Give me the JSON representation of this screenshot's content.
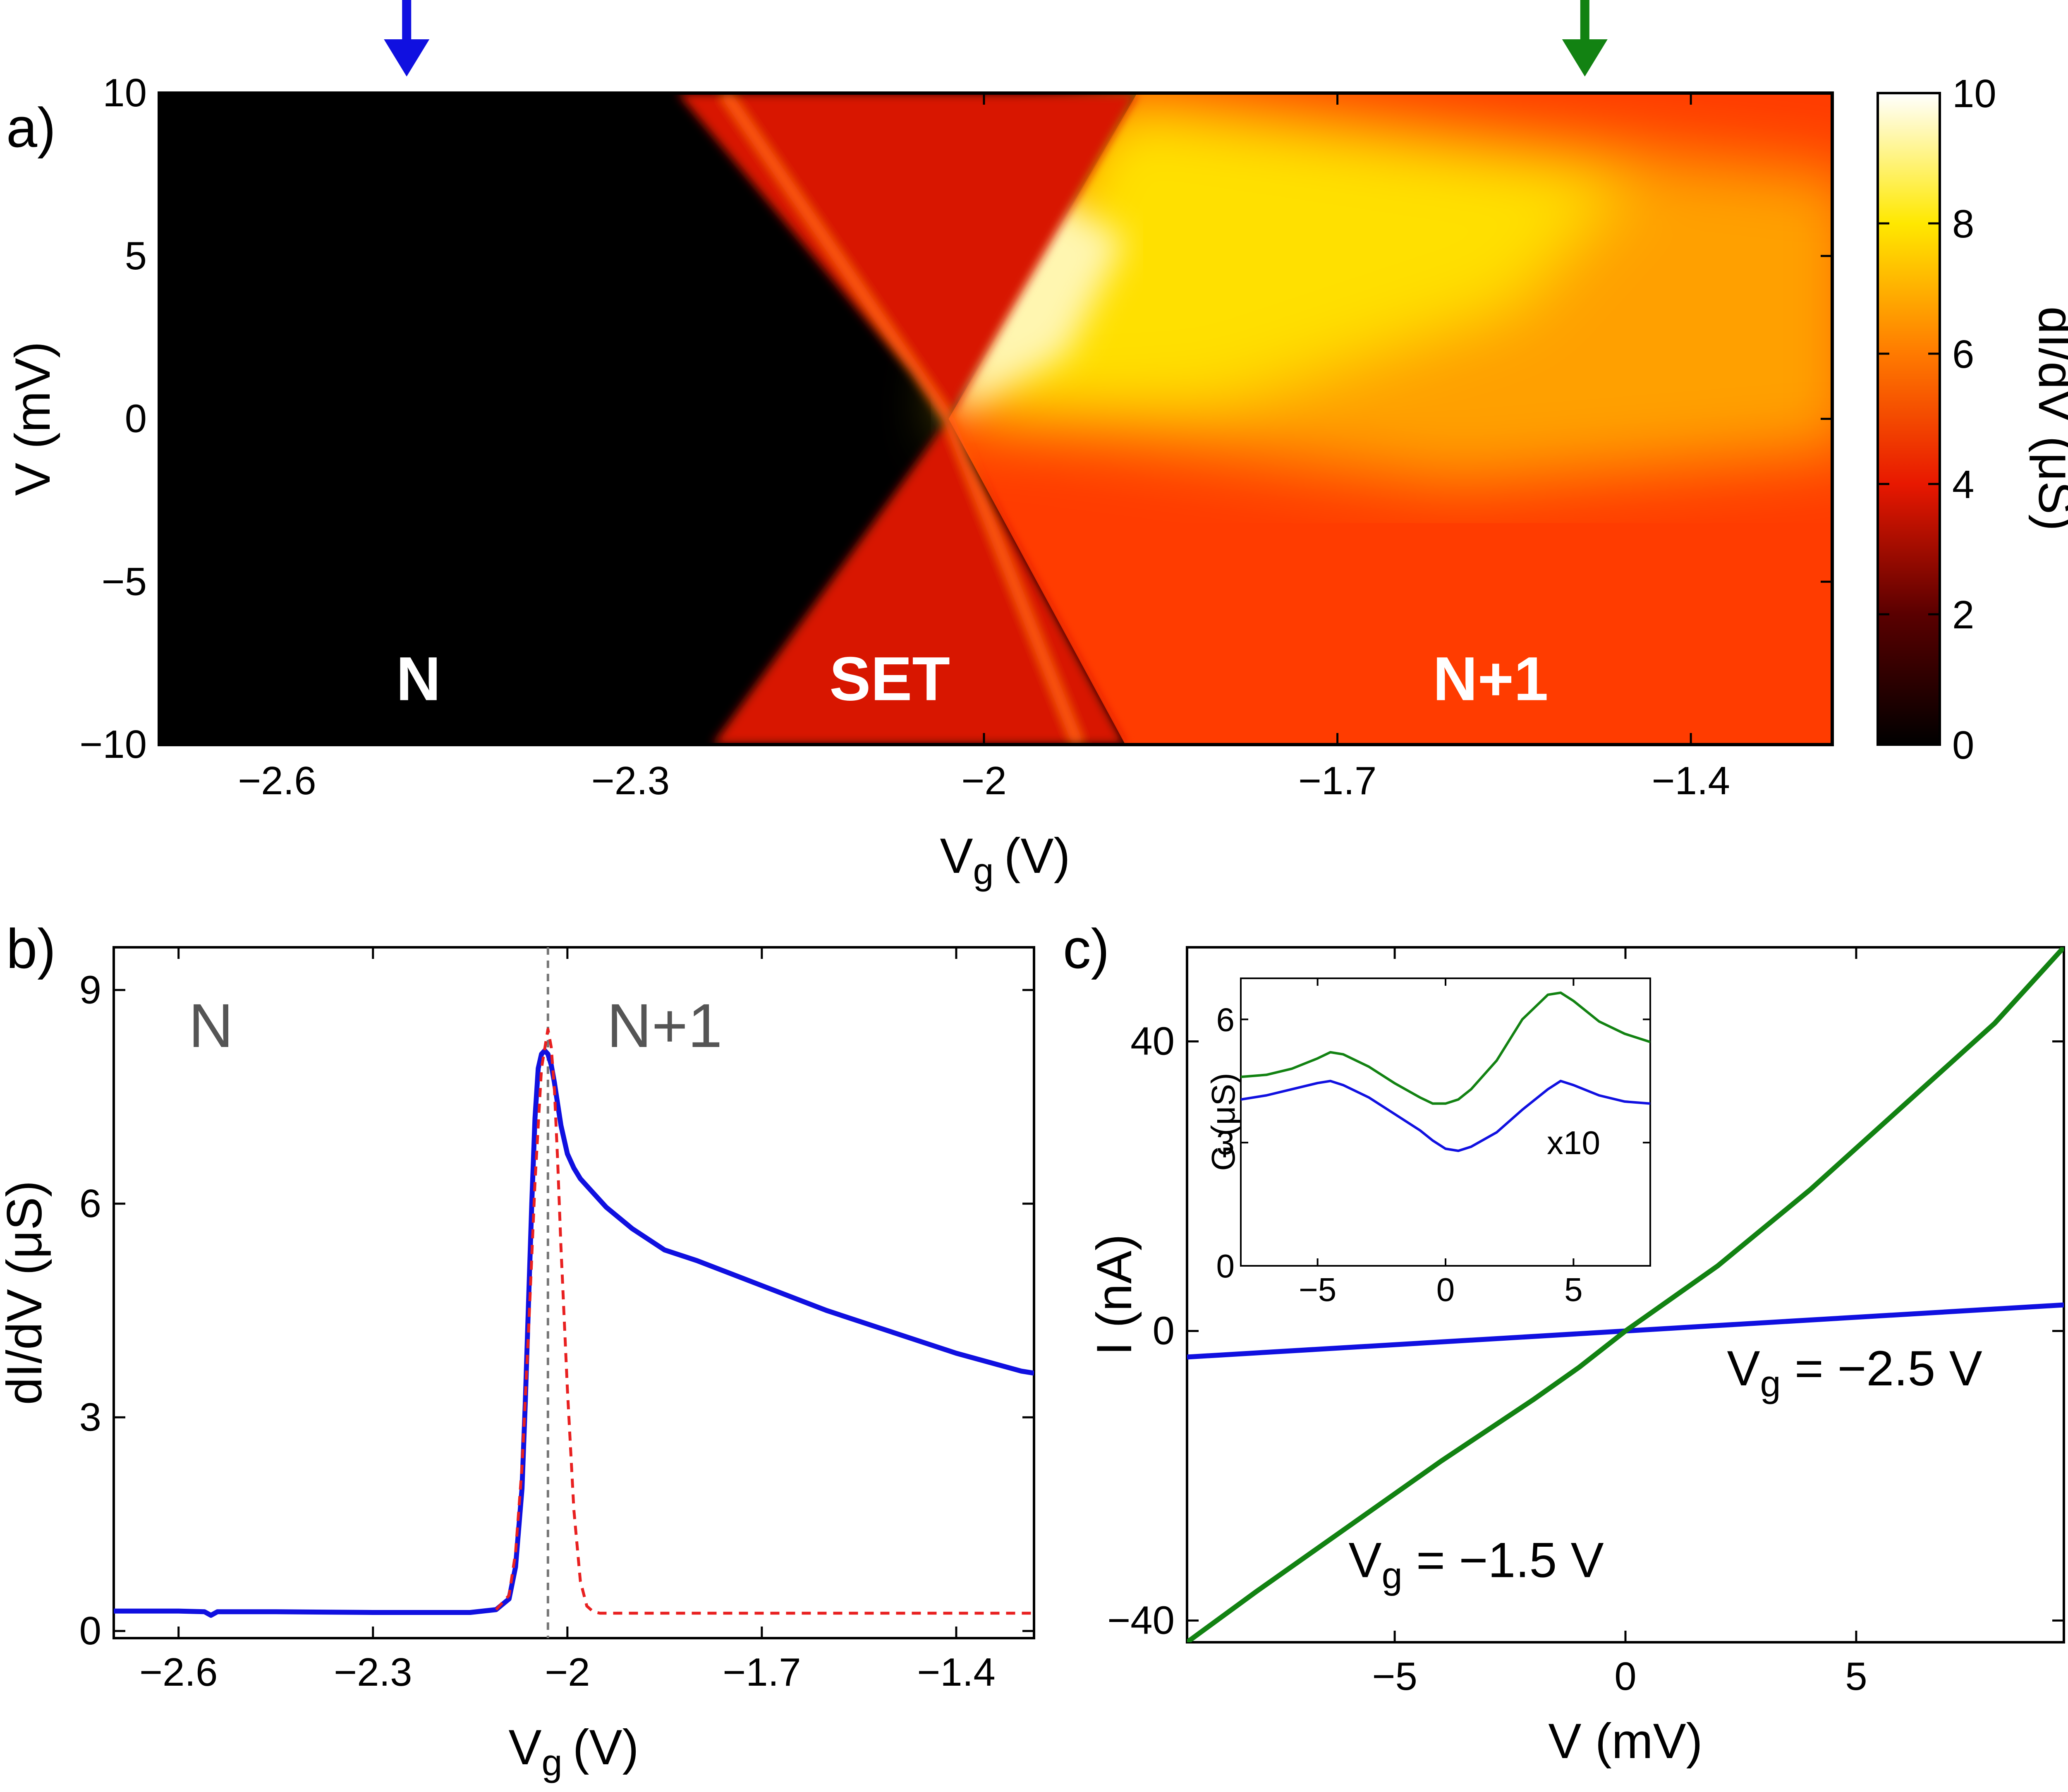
{
  "colors": {
    "blue": "#1010e0",
    "green": "#128212",
    "red": "#e82020",
    "gray": "#555555",
    "dashed_gray": "#777777",
    "heat_low": "#000000",
    "heat_mid": "#e81800",
    "heat_high": "#ffffff"
  },
  "chart_data": [
    {
      "type": "heatmap",
      "panel_label": "a)",
      "xlabel_main": "V",
      "xlabel_sub": "g",
      "xlabel_unit": "(V)",
      "ylabel": "V (mV)",
      "colorbar_label": "dI/dV (μS)",
      "xlim": [
        -2.7,
        -1.28
      ],
      "ylim": [
        -10,
        10
      ],
      "clim": [
        0,
        10
      ],
      "x_ticks": [
        -2.6,
        -2.3,
        -2,
        -1.7,
        -1.4
      ],
      "x_tick_labels": [
        "−2.6",
        "−2.3",
        "−2",
        "−1.7",
        "−1.4"
      ],
      "y_ticks": [
        -10,
        -5,
        0,
        5,
        10
      ],
      "y_tick_labels": [
        "−10",
        "−5",
        "0",
        "5",
        "10"
      ],
      "colorbar_ticks": [
        0,
        2,
        4,
        6,
        8,
        10
      ],
      "colorbar_tick_labels": [
        "0",
        "2",
        "4",
        "6",
        "8",
        "10"
      ],
      "regions": [
        {
          "label": "N",
          "x": -2.48,
          "y": -8
        },
        {
          "label": "SET",
          "x": -2.08,
          "y": -8
        },
        {
          "label": "N+1",
          "x": -1.57,
          "y": -8
        }
      ],
      "degeneracy_point": {
        "x": -2.03,
        "y": 0
      },
      "arrows": [
        {
          "x": -2.49,
          "color": "blue"
        },
        {
          "x": -1.49,
          "color": "green"
        }
      ]
    },
    {
      "type": "line",
      "panel_label": "b)",
      "xlabel_main": "V",
      "xlabel_sub": "g",
      "xlabel_unit": "(V)",
      "ylabel": "dI/dV (μS)",
      "xlim": [
        -2.7,
        -1.28
      ],
      "ylim": [
        -0.1,
        9.6
      ],
      "x_ticks": [
        -2.6,
        -2.3,
        -2,
        -1.7,
        -1.4
      ],
      "x_tick_labels": [
        "−2.6",
        "−2.3",
        "−2",
        "−1.7",
        "−1.4"
      ],
      "y_ticks": [
        0,
        3,
        6,
        9
      ],
      "y_tick_labels": [
        "0",
        "3",
        "6",
        "9"
      ],
      "region_labels": [
        {
          "label": "N",
          "x": -2.55,
          "y": 8.2
        },
        {
          "label": "N+1",
          "x": -1.85,
          "y": 8.2
        }
      ],
      "vline_x": -2.03,
      "series": [
        {
          "color": "blue",
          "style": "solid",
          "x": [
            -2.7,
            -2.6,
            -2.56,
            -2.55,
            -2.54,
            -2.45,
            -2.3,
            -2.2,
            -2.15,
            -2.11,
            -2.09,
            -2.08,
            -2.07,
            -2.065,
            -2.06,
            -2.055,
            -2.05,
            -2.045,
            -2.04,
            -2.035,
            -2.03,
            -2.025,
            -2.02,
            -2.015,
            -2.01,
            -2.0,
            -1.99,
            -1.98,
            -1.96,
            -1.94,
            -1.9,
            -1.85,
            -1.8,
            -1.7,
            -1.6,
            -1.5,
            -1.4,
            -1.3,
            -1.28
          ],
          "y": [
            0.28,
            0.28,
            0.27,
            0.22,
            0.27,
            0.27,
            0.26,
            0.26,
            0.26,
            0.3,
            0.45,
            0.9,
            2.0,
            3.2,
            4.6,
            6.0,
            7.2,
            7.9,
            8.1,
            8.15,
            8.1,
            7.95,
            7.7,
            7.4,
            7.1,
            6.7,
            6.5,
            6.35,
            6.15,
            5.95,
            5.65,
            5.35,
            5.2,
            4.85,
            4.5,
            4.2,
            3.9,
            3.65,
            3.62
          ]
        },
        {
          "color": "red",
          "style": "dashed",
          "x": [
            -2.11,
            -2.09,
            -2.08,
            -2.07,
            -2.06,
            -2.05,
            -2.04,
            -2.03,
            -2.025,
            -2.02,
            -2.015,
            -2.01,
            -2.0,
            -1.99,
            -1.98,
            -1.97,
            -1.96,
            -1.95,
            -1.9,
            -1.8,
            -1.6,
            -1.4,
            -1.28
          ],
          "y": [
            0.3,
            0.5,
            1.1,
            2.3,
            4.2,
            6.3,
            7.9,
            8.45,
            8.2,
            7.6,
            6.6,
            5.4,
            3.4,
            1.7,
            0.7,
            0.35,
            0.27,
            0.25,
            0.25,
            0.25,
            0.25,
            0.25,
            0.25
          ]
        }
      ]
    },
    {
      "type": "line",
      "panel_label": "c)",
      "xlabel": "V (mV)",
      "ylabel": "I (nA)",
      "xlim": [
        -9.5,
        9.5
      ],
      "ylim": [
        -43,
        53
      ],
      "x_ticks": [
        -5,
        0,
        5
      ],
      "x_tick_labels": [
        "−5",
        "0",
        "5"
      ],
      "y_ticks": [
        -40,
        0,
        40
      ],
      "y_tick_labels": [
        "−40",
        "0",
        "40"
      ],
      "annotations": [
        {
          "main": "V",
          "sub": "g",
          "rest": " = −2.5 V",
          "x": 2.2,
          "y": -7.5
        },
        {
          "main": "V",
          "sub": "g",
          "rest": " = −1.5 V",
          "x": -6.0,
          "y": -34
        }
      ],
      "series": [
        {
          "color": "blue",
          "x": [
            -9.5,
            9.5
          ],
          "y": [
            -3.6,
            3.6
          ]
        },
        {
          "color": "green",
          "x": [
            -9.5,
            -8,
            -6,
            -4,
            -2,
            -1,
            0,
            1,
            2,
            4,
            6,
            8,
            9.5
          ],
          "y": [
            -43,
            -36,
            -27,
            -18,
            -9.5,
            -5,
            0,
            4.5,
            9,
            19.5,
            31,
            42.5,
            53
          ]
        }
      ],
      "inset": {
        "ylabel": "G (μS)",
        "xlim": [
          -8,
          8
        ],
        "ylim": [
          0,
          7
        ],
        "x_ticks": [
          -5,
          0,
          5
        ],
        "x_tick_labels": [
          "−5",
          "0",
          "5"
        ],
        "y_ticks": [
          0,
          3,
          6
        ],
        "y_tick_labels": [
          "0",
          "3",
          "6"
        ],
        "label": "x10",
        "series": [
          {
            "color": "green",
            "x": [
              -8,
              -7,
              -6,
              -5,
              -4.5,
              -4,
              -3,
              -2,
              -1,
              -0.5,
              0,
              0.5,
              1,
              2,
              3,
              4,
              4.5,
              5,
              6,
              7,
              8
            ],
            "y": [
              4.6,
              4.65,
              4.8,
              5.05,
              5.2,
              5.15,
              4.85,
              4.45,
              4.1,
              3.95,
              3.95,
              4.05,
              4.3,
              5.0,
              6.0,
              6.6,
              6.65,
              6.45,
              5.95,
              5.65,
              5.45
            ]
          },
          {
            "color": "blue",
            "x": [
              -8,
              -7,
              -6,
              -5,
              -4.5,
              -4,
              -3,
              -2,
              -1,
              -0.5,
              0,
              0.5,
              1,
              2,
              3,
              4,
              4.5,
              5,
              6,
              7,
              8
            ],
            "y": [
              4.05,
              4.15,
              4.3,
              4.45,
              4.5,
              4.4,
              4.1,
              3.7,
              3.3,
              3.05,
              2.85,
              2.8,
              2.9,
              3.25,
              3.8,
              4.3,
              4.5,
              4.4,
              4.15,
              4.0,
              3.95
            ]
          }
        ]
      }
    }
  ]
}
